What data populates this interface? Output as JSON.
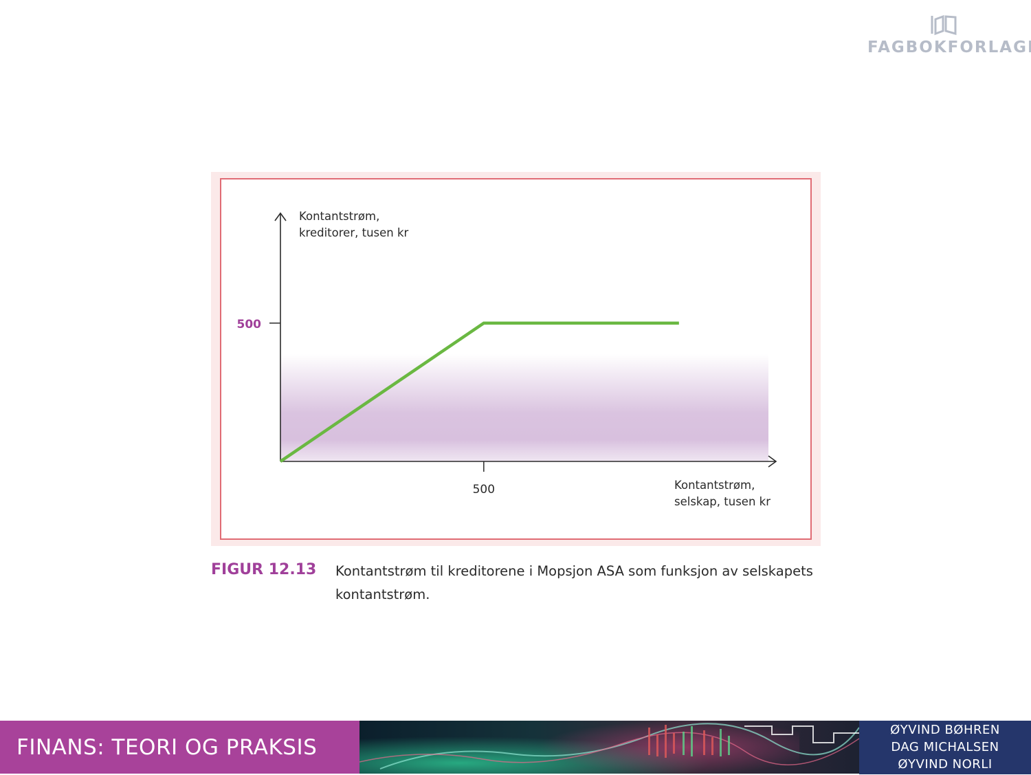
{
  "header": {
    "publisher_logo_text": "FAGBOKFORLAGET"
  },
  "chart_data": {
    "type": "line",
    "ylabel_lines": [
      "Kontantstrøm,",
      "kreditorer, tusen kr"
    ],
    "xlabel_lines": [
      "Kontantstrøm,",
      "selskap, tusen kr"
    ],
    "x_ticks": [
      500
    ],
    "y_ticks": [
      500
    ],
    "xlim": [
      0,
      1200
    ],
    "ylim": [
      0,
      870
    ],
    "series": [
      {
        "x": [
          0,
          500,
          980
        ],
        "y": [
          0,
          500,
          500
        ],
        "color": "#6ab842"
      }
    ],
    "colors": {
      "tick_y": "#a0409a",
      "shading": "#d8c0de"
    }
  },
  "caption": {
    "label": "FIGUR 12.13",
    "text": "Kontantstrøm til kreditorene i Mopsjon ASA som funksjon av selskapets kontantstrøm."
  },
  "footer": {
    "book_title": "FINANS: TEORI OG PRAKSIS",
    "authors": [
      "ØYVIND BØHREN",
      "DAG MICHALSEN",
      "ØYVIND NORLI"
    ]
  }
}
